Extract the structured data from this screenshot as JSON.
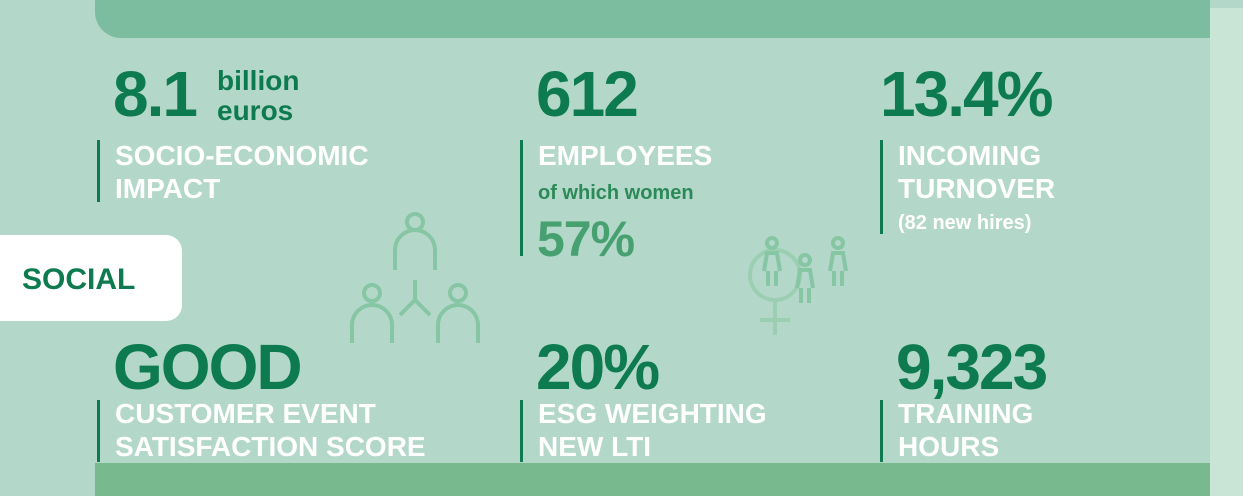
{
  "tab": "SOCIAL",
  "stats": [
    {
      "value": "8.1",
      "unit": [
        "billion",
        "euros"
      ],
      "label": [
        "SOCIO-ECONOMIC",
        "IMPACT"
      ]
    },
    {
      "value": "612",
      "label": [
        "EMPLOYEES"
      ],
      "note": "of which women",
      "extra": "57%"
    },
    {
      "value": "13.4%",
      "label": [
        "INCOMING",
        "TURNOVER"
      ],
      "note": "(82 new hires)"
    },
    {
      "value": "GOOD",
      "label": [
        "CUSTOMER EVENT",
        "SATISFACTION SCORE"
      ]
    },
    {
      "value": "20%",
      "label": [
        "ESG WEIGHTING",
        "NEW LTI"
      ]
    },
    {
      "value": "9,323",
      "label": [
        "TRAINING",
        "HOURS"
      ]
    }
  ]
}
